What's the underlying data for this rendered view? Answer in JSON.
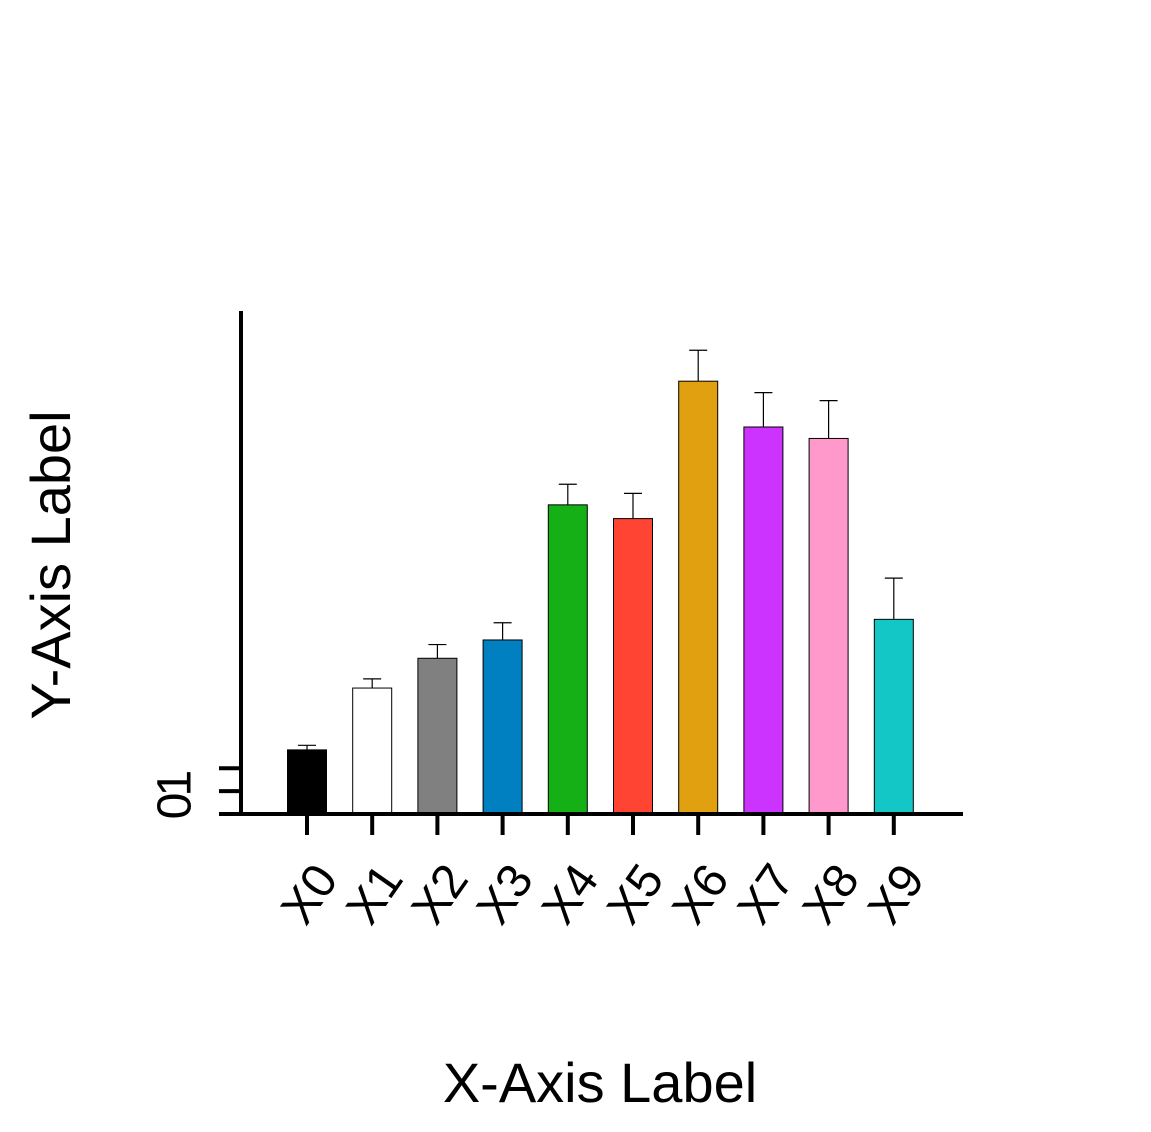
{
  "chart_data": {
    "type": "bar",
    "title": "",
    "xlabel": "X-Axis Label",
    "ylabel": "Y-Axis Label",
    "categories": [
      "X0",
      "X1",
      "X2",
      "X3",
      "X4",
      "X5",
      "X6",
      "X7",
      "X8",
      "X9"
    ],
    "values": [
      2.8,
      5.5,
      6.8,
      7.6,
      13.5,
      12.9,
      18.9,
      16.9,
      16.4,
      8.5
    ],
    "errors": [
      0.2,
      0.4,
      0.6,
      0.75,
      0.9,
      1.1,
      1.35,
      1.5,
      1.65,
      1.8
    ],
    "colors": [
      "#000000",
      "#ffffff",
      "#808080",
      "#0080c0",
      "#15b015",
      "#ff4433",
      "#e0a010",
      "#cc33ff",
      "#ff99cc",
      "#14c7c7"
    ],
    "yticks": [
      0,
      1
    ],
    "ylim": [
      0,
      22
    ],
    "grid": false,
    "legend": "none"
  }
}
